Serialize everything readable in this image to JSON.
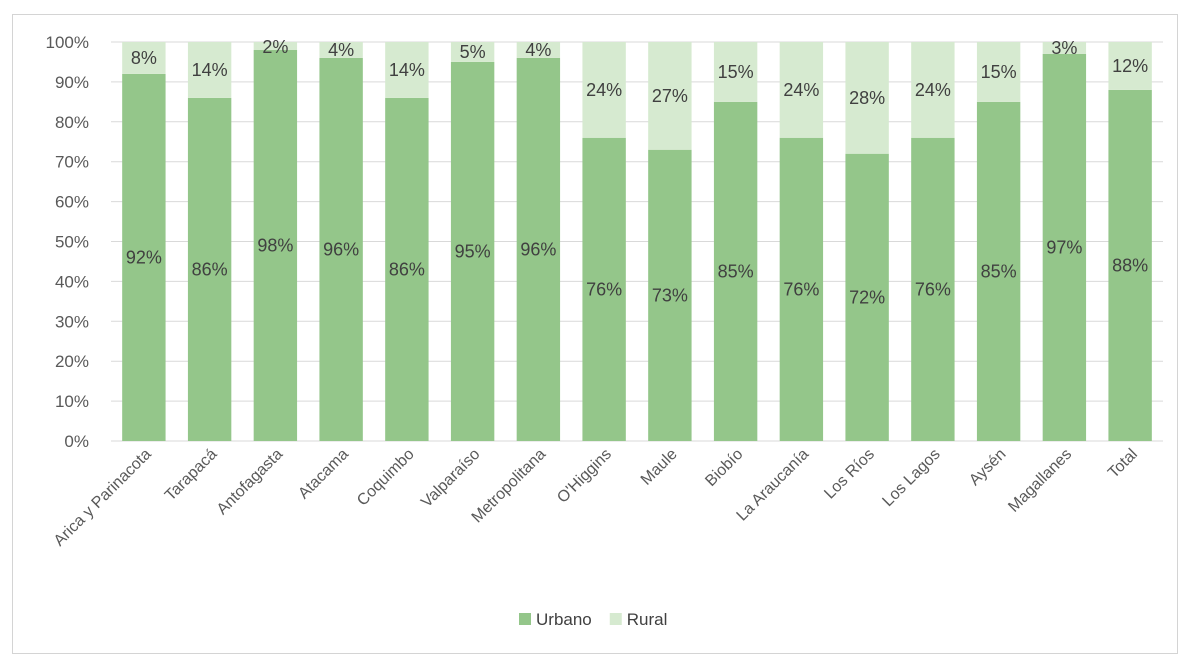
{
  "chart_data": {
    "type": "bar",
    "stacked": true,
    "title": "",
    "xlabel": "",
    "ylabel": "",
    "ylim": [
      0,
      100
    ],
    "y_ticks": [
      "0%",
      "10%",
      "20%",
      "30%",
      "40%",
      "50%",
      "60%",
      "70%",
      "80%",
      "90%",
      "100%"
    ],
    "grid": true,
    "legend_position": "bottom",
    "categories": [
      "Arica y Parinacota",
      "Tarapacá",
      "Antofagasta",
      "Atacama",
      "Coquimbo",
      "Valparaíso",
      "Metropolitana",
      "O'Higgins",
      "Maule",
      "Biobío",
      "La Araucanía",
      "Los Ríos",
      "Los Lagos",
      "Aysén",
      "Magallanes",
      "Total"
    ],
    "series": [
      {
        "name": "Urbano",
        "color": "#94c68a",
        "values": [
          92,
          86,
          98,
          96,
          86,
          95,
          96,
          76,
          73,
          85,
          76,
          72,
          76,
          85,
          97,
          88
        ],
        "labels": [
          "92%",
          "86%",
          "98%",
          "96%",
          "86%",
          "95%",
          "96%",
          "76%",
          "73%",
          "85%",
          "76%",
          "72%",
          "76%",
          "85%",
          "97%",
          "88%"
        ]
      },
      {
        "name": "Rural",
        "color": "#d6ead0",
        "values": [
          8,
          14,
          2,
          4,
          14,
          5,
          4,
          24,
          27,
          15,
          24,
          28,
          24,
          15,
          3,
          12
        ],
        "labels": [
          "8%",
          "14%",
          "2%",
          "4%",
          "14%",
          "5%",
          "4%",
          "24%",
          "27%",
          "15%",
          "24%",
          "28%",
          "24%",
          "15%",
          "3%",
          "12%"
        ]
      }
    ]
  }
}
